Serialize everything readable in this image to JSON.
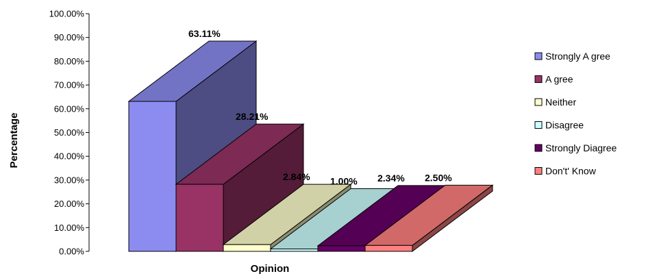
{
  "chart_data": {
    "type": "bar",
    "categories": [
      "Strongly A gree",
      "A gree",
      "Neither",
      "Disagree",
      "Strongly Diagree",
      "Don't' Know"
    ],
    "values": [
      63.11,
      28.21,
      2.84,
      1.0,
      2.34,
      2.5
    ],
    "value_labels": [
      "63.11%",
      "28.21%",
      "2.84%",
      "1.00%",
      "2.34%",
      "2.50%"
    ],
    "colors": [
      "#8c8cf0",
      "#993366",
      "#ffffcc",
      "#ccffff",
      "#660066",
      "#ff8080"
    ],
    "xlabel": "Opinion",
    "ylabel": "Percentage",
    "ylim": [
      0,
      100
    ],
    "y_ticks": [
      "0.00%",
      "10.00%",
      "20.00%",
      "30.00%",
      "40.00%",
      "50.00%",
      "60.00%",
      "70.00%",
      "80.00%",
      "90.00%",
      "100.00%"
    ],
    "legend": {
      "position": "right",
      "items": [
        "Strongly A gree",
        "A gree",
        "Neither",
        "Disagree",
        "Strongly Diagree",
        "Don't' Know"
      ]
    },
    "grid": false,
    "style": "3d-bar"
  }
}
